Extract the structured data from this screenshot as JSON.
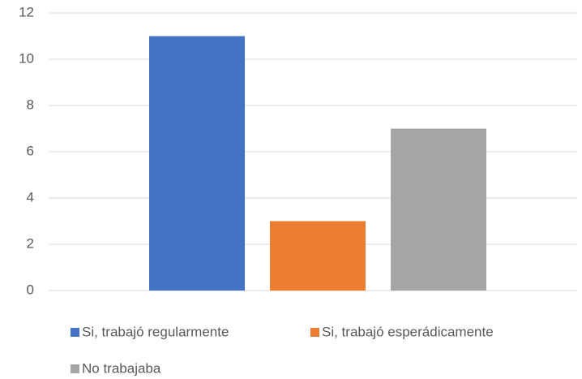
{
  "chart_data": {
    "type": "bar",
    "categories": [
      null
    ],
    "series": [
      {
        "name": "Si, trabajó regularmente",
        "color": "#4472c4",
        "values": [
          11
        ]
      },
      {
        "name": "Si, trabajó esperádicamente",
        "color": "#ed7d31",
        "values": [
          3
        ]
      },
      {
        "name": "No trabajaba",
        "color": "#a5a5a5",
        "values": [
          7
        ]
      }
    ],
    "ylim": [
      0,
      12
    ],
    "yticks": [
      0,
      2,
      4,
      6,
      8,
      10,
      12
    ],
    "grid": true,
    "legend": "bottom"
  }
}
